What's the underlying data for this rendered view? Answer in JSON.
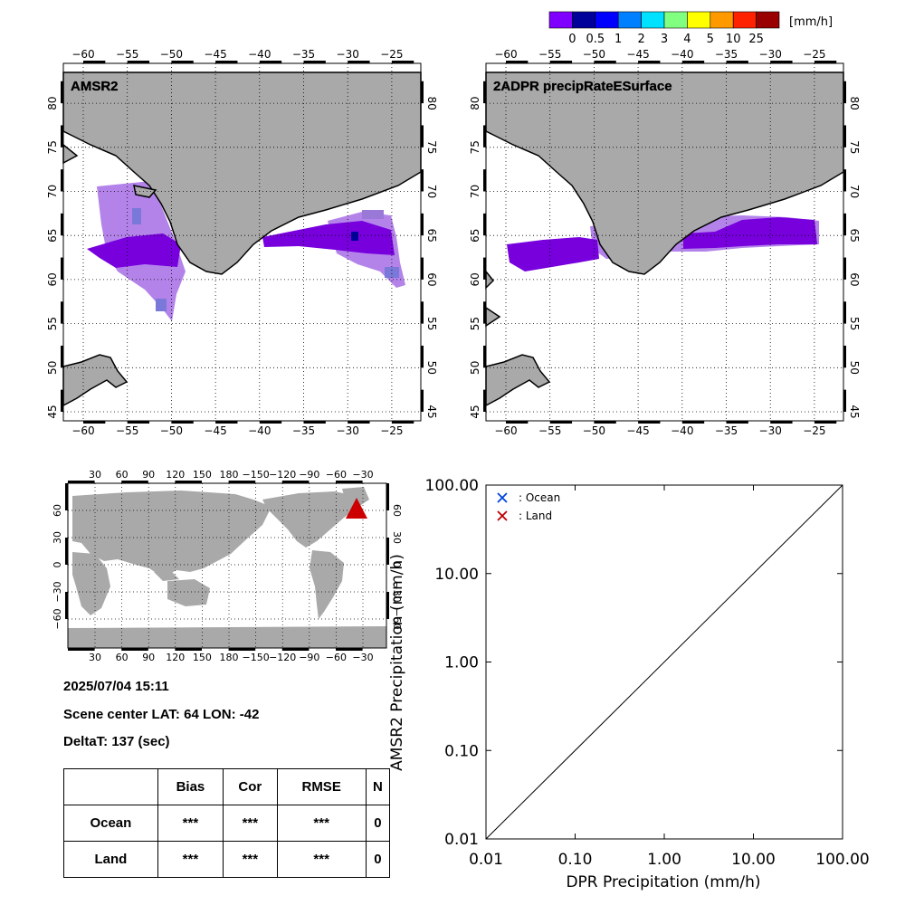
{
  "colorbar": {
    "unit": "[mm/h]",
    "ticks": [
      "0",
      "0.5",
      "1",
      "2",
      "3",
      "4",
      "5",
      "10",
      "25"
    ],
    "colors": [
      "#7f00ff",
      "#00009a",
      "#0000ff",
      "#0080ff",
      "#00e0ff",
      "#80ff80",
      "#ffff00",
      "#ff9900",
      "#ff2200",
      "#990000"
    ]
  },
  "maps": {
    "lon_ticks": [
      "−60",
      "−55",
      "−50",
      "−45",
      "−40",
      "−35",
      "−30",
      "−25"
    ],
    "lat_ticks": [
      "45",
      "50",
      "55",
      "60",
      "65",
      "70",
      "75",
      "80"
    ],
    "land_color": "#a9a9a9",
    "left": {
      "title": "AMSR2"
    },
    "right": {
      "title": "2ADPR precipRateESurface"
    }
  },
  "globe": {
    "lon_ticks": [
      "30",
      "60",
      "90",
      "120",
      "150",
      "180",
      "−150",
      "−120",
      "−90",
      "−60",
      "−30"
    ],
    "lat_ticks": [
      "60",
      "30",
      "0",
      "−30",
      "−60"
    ],
    "marker_color": "#cc0000"
  },
  "info": {
    "datetime": "2025/07/04 15:11",
    "scene_center": "Scene center LAT: 64   LON: -42",
    "delta_t": "DeltaT:  137 (sec)"
  },
  "stats": {
    "headers": [
      "",
      "Bias",
      "Cor",
      "RMSE",
      "N"
    ],
    "rows": [
      [
        "Ocean",
        "***",
        "***",
        "***",
        "0"
      ],
      [
        "Land",
        "***",
        "***",
        "***",
        "0"
      ]
    ]
  },
  "chart_data": {
    "type": "scatter",
    "xlabel": "DPR Precipitation (mm/h)",
    "ylabel": "AMSR2 Precipitation (mm/h)",
    "x_scale": "log",
    "y_scale": "log",
    "xlim": [
      0.01,
      100
    ],
    "ylim": [
      0.01,
      100
    ],
    "x_tick_labels": [
      "0.01",
      "0.10",
      "1.00",
      "10.00",
      "100.00"
    ],
    "y_tick_labels": [
      "0.01",
      "0.10",
      "1.00",
      "10.00",
      "100.00"
    ],
    "legend_position": "top-left",
    "series": [
      {
        "name": ": Ocean",
        "color": "#0044dd",
        "marker": "x",
        "points": []
      },
      {
        "name": ": Land",
        "color": "#bb0000",
        "marker": "x",
        "points": []
      }
    ],
    "reference_line": {
      "x": [
        0.01,
        100
      ],
      "y": [
        0.01,
        100
      ]
    }
  }
}
